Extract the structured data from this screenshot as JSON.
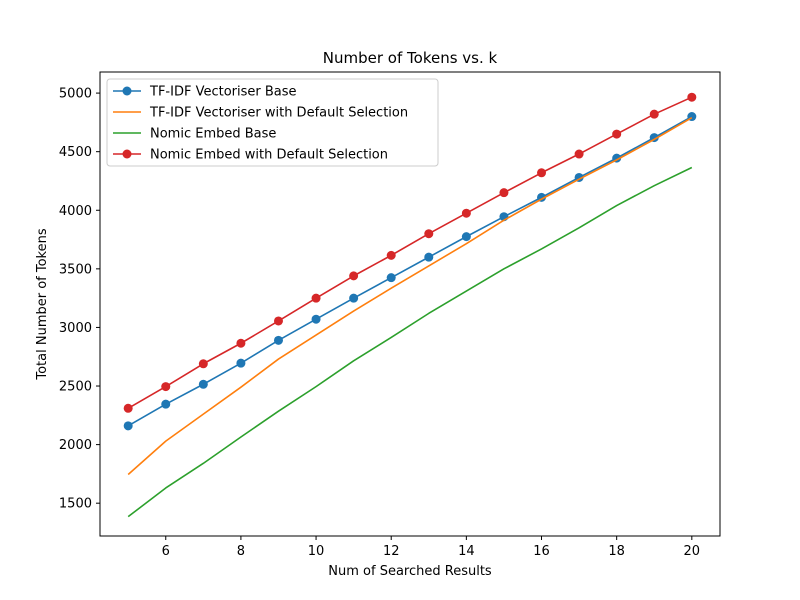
{
  "chart_data": {
    "type": "line",
    "title": "Number of Tokens vs. k",
    "xlabel": "Num of Searched Results",
    "ylabel": "Total Number of Tokens",
    "xlim": [
      4.25,
      20.75
    ],
    "ylim": [
      1220,
      5180
    ],
    "xticks": [
      6,
      8,
      10,
      12,
      14,
      16,
      18,
      20
    ],
    "yticks": [
      1500,
      2000,
      2500,
      3000,
      3500,
      4000,
      4500,
      5000
    ],
    "x": [
      5,
      6,
      7,
      8,
      9,
      10,
      11,
      12,
      13,
      14,
      15,
      16,
      17,
      18,
      19,
      20
    ],
    "grid": false,
    "legend_position": "top-left",
    "series": [
      {
        "name": "TF-IDF Vectoriser Base",
        "color": "#1f77b4",
        "marker": "circle",
        "values": [
          2160,
          2345,
          2515,
          2695,
          2890,
          3070,
          3250,
          3425,
          3600,
          3775,
          3945,
          4110,
          4280,
          4445,
          4620,
          4800
        ]
      },
      {
        "name": "TF-IDF Vectoriser  with Default Selection",
        "color": "#ff7f0e",
        "marker": "none",
        "values": [
          1745,
          2030,
          2260,
          2490,
          2730,
          2935,
          3140,
          3335,
          3525,
          3715,
          3915,
          4095,
          4265,
          4430,
          4605,
          4790
        ]
      },
      {
        "name": "Nomic Embed Base",
        "color": "#2ca02c",
        "marker": "none",
        "values": [
          1385,
          1630,
          1840,
          2065,
          2285,
          2495,
          2715,
          2915,
          3120,
          3310,
          3500,
          3670,
          3850,
          4040,
          4210,
          4365
        ]
      },
      {
        "name": "Nomic Embed with Default Selection",
        "color": "#d62728",
        "marker": "circle",
        "values": [
          2310,
          2495,
          2690,
          2865,
          3055,
          3250,
          3440,
          3615,
          3800,
          3975,
          4150,
          4320,
          4480,
          4650,
          4820,
          4965
        ]
      }
    ]
  }
}
